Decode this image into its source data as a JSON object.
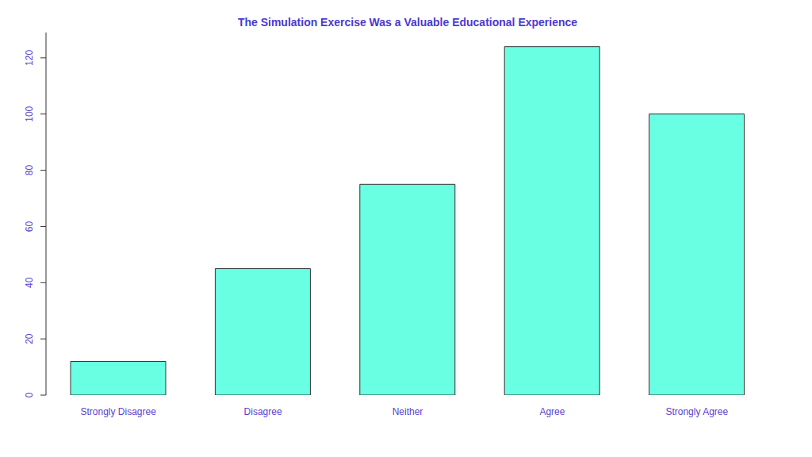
{
  "chart_data": {
    "type": "bar",
    "title": "The Simulation Exercise Was a Valuable Educational Experience",
    "categories": [
      "Strongly Disagree",
      "Disagree",
      "Neither",
      "Agree",
      "Strongly Agree"
    ],
    "values": [
      12,
      45,
      75,
      124,
      100
    ],
    "color": "#69ffe3",
    "ylim": [
      0,
      129
    ],
    "yticks": [
      0,
      20,
      40,
      60,
      80,
      100,
      120
    ],
    "grid": false
  }
}
